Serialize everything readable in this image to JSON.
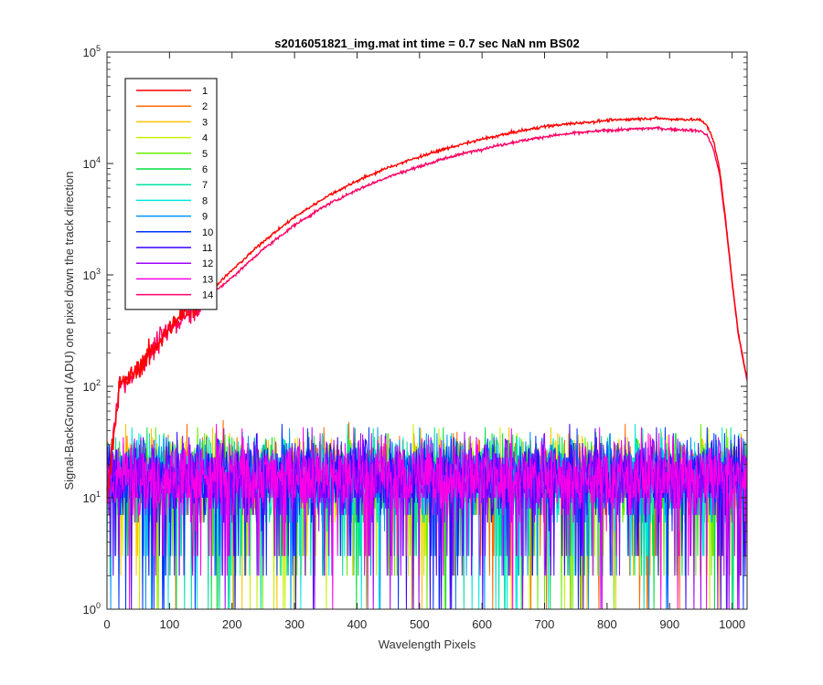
{
  "chart_data": {
    "type": "line",
    "title": "s2016051821_img.mat int time = 0.7 sec  NaN nm BS02",
    "xlabel": "Wavelength Pixels",
    "ylabel": "Signal-BackGround (ADU) one pixel down the track direction",
    "xlim": [
      0,
      1024
    ],
    "ylim": [
      1,
      100000
    ],
    "yscale": "log",
    "grid": false,
    "legend_position": "top-left",
    "x_ticks": [
      0,
      100,
      200,
      300,
      400,
      500,
      600,
      700,
      800,
      900,
      1000
    ],
    "y_ticks": [
      {
        "base": "10",
        "exp": "0",
        "value": 1
      },
      {
        "base": "10",
        "exp": "1",
        "value": 10
      },
      {
        "base": "10",
        "exp": "2",
        "value": 100
      },
      {
        "base": "10",
        "exp": "3",
        "value": 1000
      },
      {
        "base": "10",
        "exp": "4",
        "value": 10000
      },
      {
        "base": "10",
        "exp": "5",
        "value": 100000
      }
    ],
    "series": [
      {
        "name": "1",
        "color": "#ff0000",
        "kind": "signal",
        "x": [
          0,
          10,
          20,
          40,
          60,
          80,
          100,
          120,
          150,
          200,
          250,
          300,
          350,
          400,
          450,
          500,
          550,
          600,
          650,
          700,
          750,
          800,
          850,
          880,
          900,
          930,
          950,
          960,
          970,
          980,
          990,
          1000,
          1010,
          1020,
          1024
        ],
        "values": [
          10,
          35,
          100,
          125,
          170,
          240,
          330,
          430,
          600,
          1100,
          2000,
          3300,
          5000,
          7000,
          9200,
          11500,
          14000,
          16500,
          19000,
          21500,
          23000,
          24300,
          25200,
          25500,
          25000,
          24800,
          24500,
          22000,
          16000,
          9000,
          3000,
          900,
          300,
          150,
          120
        ]
      },
      {
        "name": "2",
        "color": "#ff6a00",
        "kind": "noise",
        "x": [
          0,
          1024
        ],
        "values": [
          1,
          60
        ]
      },
      {
        "name": "3",
        "color": "#ffc400",
        "kind": "noise",
        "x": [
          0,
          1024
        ],
        "values": [
          1,
          60
        ]
      },
      {
        "name": "4",
        "color": "#c8f000",
        "kind": "noise",
        "x": [
          0,
          1024
        ],
        "values": [
          1,
          60
        ]
      },
      {
        "name": "5",
        "color": "#66ee00",
        "kind": "noise",
        "x": [
          0,
          1024
        ],
        "values": [
          1,
          60
        ]
      },
      {
        "name": "6",
        "color": "#00e040",
        "kind": "noise",
        "x": [
          0,
          1024
        ],
        "values": [
          1,
          60
        ]
      },
      {
        "name": "7",
        "color": "#00e0a0",
        "kind": "noise",
        "x": [
          0,
          1024
        ],
        "values": [
          1,
          60
        ]
      },
      {
        "name": "8",
        "color": "#00e8e0",
        "kind": "noise",
        "x": [
          0,
          1024
        ],
        "values": [
          1,
          60
        ]
      },
      {
        "name": "9",
        "color": "#0095ff",
        "kind": "noise",
        "x": [
          0,
          1024
        ],
        "values": [
          1,
          60
        ]
      },
      {
        "name": "10",
        "color": "#0030ff",
        "kind": "noise",
        "x": [
          0,
          1024
        ],
        "values": [
          1,
          60
        ]
      },
      {
        "name": "11",
        "color": "#3a00ff",
        "kind": "noise",
        "x": [
          0,
          1024
        ],
        "values": [
          1,
          60
        ]
      },
      {
        "name": "12",
        "color": "#a000ff",
        "kind": "noise",
        "x": [
          0,
          1024
        ],
        "values": [
          1,
          60
        ]
      },
      {
        "name": "13",
        "color": "#ff00e6",
        "kind": "noise",
        "x": [
          0,
          1024
        ],
        "values": [
          1,
          60
        ]
      },
      {
        "name": "14",
        "color": "#ff0064",
        "kind": "signal",
        "x": [
          0,
          10,
          20,
          40,
          60,
          80,
          100,
          120,
          150,
          200,
          250,
          300,
          350,
          400,
          450,
          500,
          550,
          600,
          650,
          700,
          750,
          800,
          850,
          880,
          900,
          930,
          950,
          960,
          970,
          980,
          990,
          1000,
          1010,
          1020,
          1024
        ],
        "values": [
          10,
          35,
          100,
          125,
          170,
          240,
          320,
          420,
          560,
          950,
          1700,
          2800,
          4200,
          5800,
          7600,
          9400,
          11500,
          13500,
          15500,
          17400,
          18800,
          19800,
          20500,
          20800,
          20300,
          20000,
          19500,
          18000,
          13500,
          8000,
          2800,
          850,
          290,
          145,
          115
        ]
      }
    ]
  }
}
